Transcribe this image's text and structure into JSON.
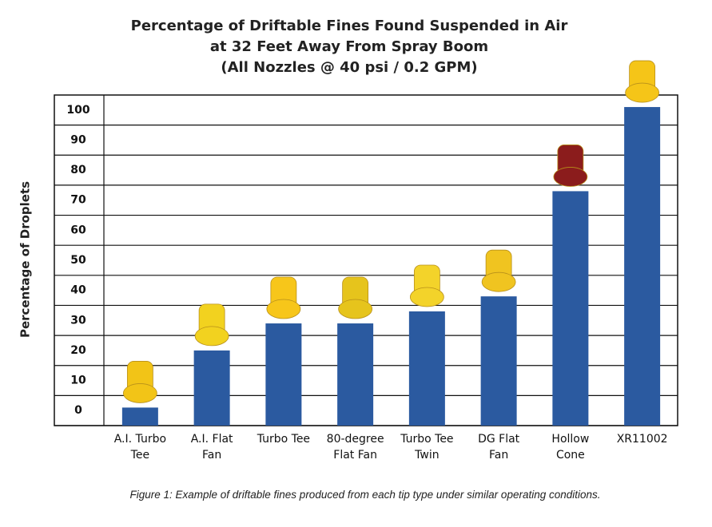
{
  "chart_data": {
    "type": "bar",
    "title": [
      "Percentage of Driftable Fines Found Suspended in Air",
      "at 32 Feet Away From Spray Boom",
      "(All Nozzles @ 40 psi / 0.2 GPM)"
    ],
    "y_label": "Percentage of Droplets",
    "categories": [
      "A.I. Turbo Tee",
      "A.I. Flat Fan",
      "Turbo Tee",
      "80-degree Flat Fan",
      "Turbo Tee Twin",
      "DG Flat Fan",
      "Hollow Cone",
      "XR11002"
    ],
    "values": [
      6,
      25,
      34,
      34,
      38,
      43,
      78,
      106
    ],
    "color": "#2b5aa0",
    "ylim": [
      0,
      110
    ],
    "yticks": [
      0,
      10,
      20,
      30,
      40,
      50,
      60,
      70,
      80,
      90,
      100
    ],
    "grid": true,
    "caption": "Figure 1: Example of driftable fines produced from each tip type under similar operating conditions."
  }
}
